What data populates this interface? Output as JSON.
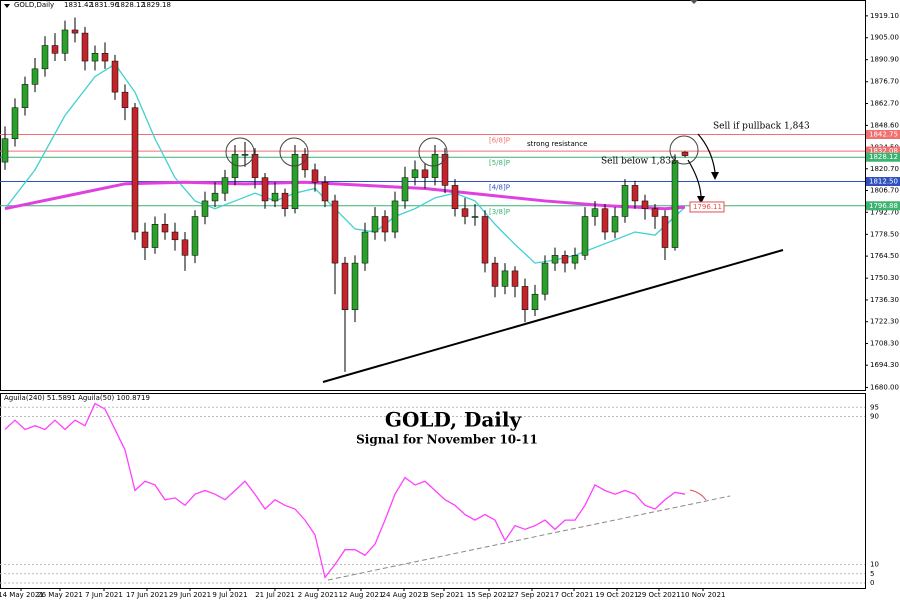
{
  "chart_data": {
    "type": "candlestick",
    "symbol": "GOLD,Daily",
    "title": "GOLD, Daily",
    "subtitle": "Signal for November 10-11",
    "annotations": {
      "resistance": "strong resistance",
      "sell_pullback": "Sell if pullback 1,843",
      "sell_below": "Sell below 1,832"
    },
    "open": [
      1825,
      1840,
      1860,
      1875,
      1885,
      1900,
      1895,
      1910,
      1908,
      1890,
      1895,
      1890,
      1870,
      1860,
      1780,
      1770,
      1785,
      1780,
      1775,
      1765,
      1790,
      1800,
      1805,
      1815,
      1830,
      1830,
      1815,
      1800,
      1805,
      1795,
      1830,
      1820,
      1812,
      1800,
      1760,
      1730,
      1760,
      1780,
      1790,
      1780,
      1800,
      1815,
      1820,
      1815,
      1830,
      1810,
      1795,
      1790,
      1790,
      1760,
      1745,
      1755,
      1745,
      1730,
      1740,
      1760,
      1765,
      1760,
      1765,
      1790,
      1795,
      1780,
      1790,
      1810,
      1800,
      1795,
      1790,
      1770,
      1831.42
    ],
    "high": [
      1848,
      1866,
      1880,
      1892,
      1906,
      1908,
      1916,
      1918,
      1912,
      1900,
      1902,
      1894,
      1875,
      1863,
      1786,
      1790,
      1792,
      1786,
      1780,
      1794,
      1806,
      1812,
      1820,
      1836,
      1838,
      1834,
      1818,
      1812,
      1808,
      1836,
      1834,
      1824,
      1816,
      1804,
      1764,
      1765,
      1786,
      1796,
      1794,
      1806,
      1822,
      1826,
      1824,
      1836,
      1834,
      1814,
      1802,
      1798,
      1794,
      1764,
      1760,
      1758,
      1750,
      1746,
      1765,
      1770,
      1768,
      1770,
      1796,
      1800,
      1798,
      1796,
      1814,
      1813,
      1804,
      1798,
      1794,
      1830,
      1831.96
    ],
    "low": [
      1820,
      1835,
      1855,
      1870,
      1880,
      1890,
      1890,
      1902,
      1884,
      1884,
      1885,
      1865,
      1852,
      1775,
      1762,
      1766,
      1775,
      1768,
      1755,
      1760,
      1785,
      1796,
      1800,
      1810,
      1822,
      1808,
      1795,
      1796,
      1790,
      1792,
      1815,
      1806,
      1796,
      1740,
      1690,
      1722,
      1755,
      1775,
      1774,
      1776,
      1795,
      1810,
      1808,
      1810,
      1805,
      1790,
      1785,
      1784,
      1754,
      1738,
      1740,
      1738,
      1722,
      1726,
      1736,
      1755,
      1754,
      1756,
      1762,
      1784,
      1775,
      1776,
      1786,
      1795,
      1788,
      1782,
      1762,
      1768,
      1828.12
    ],
    "close": [
      1840,
      1860,
      1875,
      1885,
      1900,
      1895,
      1910,
      1908,
      1890,
      1895,
      1890,
      1870,
      1860,
      1780,
      1770,
      1785,
      1780,
      1775,
      1765,
      1790,
      1800,
      1805,
      1815,
      1830,
      1830,
      1815,
      1800,
      1805,
      1795,
      1830,
      1820,
      1812,
      1800,
      1760,
      1730,
      1760,
      1780,
      1790,
      1780,
      1800,
      1815,
      1820,
      1815,
      1830,
      1810,
      1795,
      1790,
      1790,
      1760,
      1745,
      1755,
      1745,
      1730,
      1740,
      1760,
      1765,
      1760,
      1765,
      1790,
      1795,
      1780,
      1790,
      1810,
      1800,
      1795,
      1790,
      1770,
      1826,
      1829.18
    ],
    "up_color": "#2ca02c",
    "down_color": "#c0262c",
    "ma_fast": {
      "color": "#40d0d0",
      "x": [
        0,
        3,
        6,
        9,
        11,
        13,
        15,
        17,
        19,
        21,
        23,
        25,
        27,
        29,
        31,
        33,
        35,
        37,
        39,
        41,
        43,
        45,
        47,
        49,
        51,
        53,
        55,
        57,
        59,
        61,
        63,
        65,
        67,
        68
      ],
      "values": [
        1795,
        1820,
        1855,
        1880,
        1888,
        1870,
        1840,
        1815,
        1800,
        1795,
        1800,
        1805,
        1800,
        1805,
        1808,
        1795,
        1782,
        1780,
        1790,
        1795,
        1802,
        1805,
        1800,
        1785,
        1772,
        1760,
        1762,
        1765,
        1770,
        1775,
        1780,
        1778,
        1790,
        1796
      ]
    },
    "ma_slow": {
      "color": "#e040e0",
      "x": [
        0,
        6,
        12,
        18,
        24,
        30,
        36,
        42,
        48,
        54,
        60,
        66,
        68
      ],
      "values": [
        1795,
        1803,
        1811,
        1812,
        1811,
        1812,
        1810,
        1808,
        1804,
        1800,
        1797,
        1795,
        1796
      ]
    },
    "ma_tag": 1796.11,
    "levels": [
      {
        "value": 1842.75,
        "color": "#f07070",
        "name": "[6/8]P"
      },
      {
        "value": 1832.08,
        "color": "#f07070"
      },
      {
        "value": 1828.12,
        "color": "#3cb371",
        "name": "[5/8]P"
      },
      {
        "value": 1812.5,
        "label": "1812.50",
        "color": "#3050c0",
        "name": "[4/8]P"
      },
      {
        "value": 1796.88,
        "color": "#3cb371",
        "name": "[3/8]P"
      }
    ],
    "ylim": [
      1679,
      1928
    ],
    "yticks": [
      {
        "value": 1919.1,
        "label": "1919.10"
      },
      {
        "value": 1905,
        "label": "1905.00"
      },
      {
        "value": 1890.9,
        "label": "1890.90"
      },
      {
        "value": 1876.7,
        "label": "1876.70"
      },
      {
        "value": 1862.7,
        "label": "1862.70"
      },
      {
        "value": 1848.6,
        "label": "1848.60"
      },
      {
        "value": 1834.5,
        "label": "1834.50"
      },
      {
        "value": 1820.7,
        "label": "1820.70"
      },
      {
        "value": 1806.7,
        "label": "1806.70"
      },
      {
        "value": 1792.7,
        "label": "1792.70"
      },
      {
        "value": 1778.5,
        "label": "1778.50"
      },
      {
        "value": 1764.5,
        "label": "1764.50"
      },
      {
        "value": 1750.3,
        "label": "1750.30"
      },
      {
        "value": 1736.3,
        "label": "1736.30"
      },
      {
        "value": 1722.3,
        "label": "1722.30"
      },
      {
        "value": 1708.3,
        "label": "1708.30"
      },
      {
        "value": 1694.3,
        "label": "1694.30"
      },
      {
        "value": 1680,
        "label": "1680.00"
      }
    ],
    "xticks": [
      {
        "value": 1.6,
        "label": "14 May 2021"
      },
      {
        "value": 5.5,
        "label": "26 May 2021"
      },
      {
        "value": 9.9,
        "label": "7 Jun 2021"
      },
      {
        "value": 14.2,
        "label": "17 Jun 2021"
      },
      {
        "value": 18.5,
        "label": "29 Jun 2021"
      },
      {
        "value": 22.5,
        "label": "9 Jul 2021"
      },
      {
        "value": 27,
        "label": "21 Jul 2021"
      },
      {
        "value": 31.3,
        "label": "2 Aug 2021"
      },
      {
        "value": 35.6,
        "label": "12 Aug 2021"
      },
      {
        "value": 39.9,
        "label": "24 Aug 2021"
      },
      {
        "value": 43.9,
        "label": "3 Sep 2021"
      },
      {
        "value": 48.4,
        "label": "15 Sep 2021"
      },
      {
        "value": 52.7,
        "label": "27 Sep 2021"
      },
      {
        "value": 56.9,
        "label": "7 Oct 2021"
      },
      {
        "value": 61.2,
        "label": "19 Oct 2021"
      },
      {
        "value": 65.4,
        "label": "29 Oct 2021"
      },
      {
        "value": 69.8,
        "label": "10 Nov 2021"
      }
    ],
    "indicator": {
      "legend": "Aguila(240) 51.5891 Aguila(50) 100.8719",
      "color": "#ff40ff",
      "values": [
        83,
        88,
        83,
        85,
        83,
        88,
        83,
        88,
        85,
        97,
        94,
        83,
        72,
        50,
        55,
        53,
        45,
        46,
        42,
        48,
        50,
        48,
        45,
        50,
        55,
        48,
        40,
        45,
        42,
        40,
        34,
        26,
        3,
        10,
        18,
        18,
        15,
        21,
        34,
        48,
        57,
        53,
        55,
        50,
        45,
        42,
        37,
        34,
        37,
        34,
        23,
        31,
        29,
        31,
        34,
        29,
        34,
        34,
        42,
        53,
        50,
        48,
        50,
        48,
        42,
        40,
        45,
        49,
        48
      ],
      "ylim": [
        0,
        100
      ],
      "yticks": [
        95,
        90,
        10,
        5,
        0
      ]
    }
  }
}
